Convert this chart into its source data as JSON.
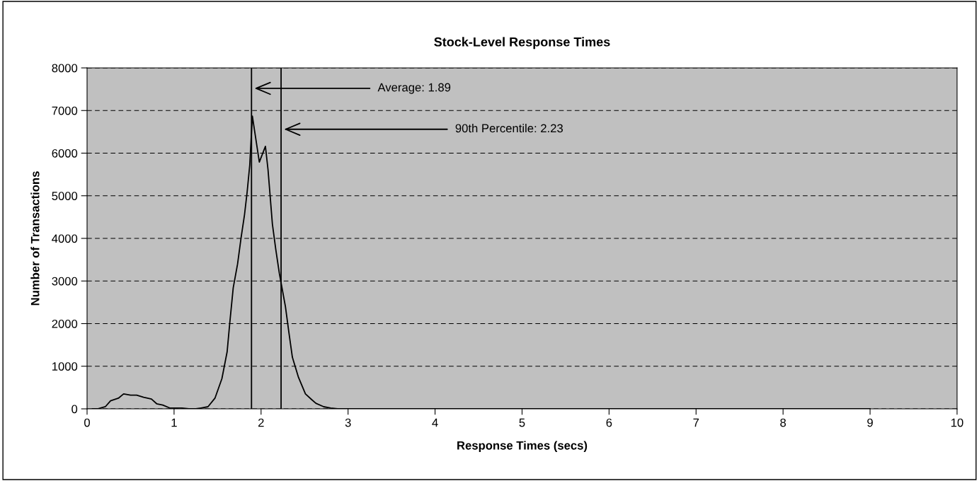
{
  "chart_data": {
    "type": "line",
    "title": "Stock-Level Response Times",
    "xlabel": "Response Times (secs)",
    "ylabel": "Number of Transactions",
    "x": [
      0.06,
      0.12,
      0.21,
      0.27,
      0.36,
      0.42,
      0.5,
      0.57,
      0.65,
      0.74,
      0.8,
      0.87,
      0.95,
      1.03,
      1.09,
      1.17,
      1.25,
      1.31,
      1.39,
      1.47,
      1.55,
      1.61,
      1.64,
      1.68,
      1.73,
      1.77,
      1.81,
      1.84,
      1.87,
      1.9,
      1.98,
      2.05,
      2.08,
      2.13,
      2.17,
      2.21,
      2.28,
      2.32,
      2.36,
      2.43,
      2.51,
      2.58,
      2.63,
      2.72,
      2.8,
      2.88,
      9.0
    ],
    "series": [
      {
        "color": "#000000",
        "values": [
          0,
          0,
          50,
          190,
          250,
          350,
          320,
          320,
          270,
          230,
          120,
          90,
          20,
          20,
          20,
          0,
          0,
          20,
          50,
          250,
          710,
          1340,
          2010,
          2840,
          3400,
          4010,
          4560,
          5090,
          5720,
          6870,
          5790,
          6160,
          5610,
          4340,
          3730,
          3180,
          2400,
          1790,
          1210,
          740,
          350,
          220,
          130,
          50,
          20,
          0,
          0
        ]
      }
    ],
    "xlim": [
      0,
      10
    ],
    "xticks": [
      0,
      1,
      2,
      3,
      4,
      5,
      6,
      7,
      8,
      9,
      10
    ],
    "ylim": [
      0,
      8000
    ],
    "yticks": [
      0,
      1000,
      2000,
      3000,
      4000,
      5000,
      6000,
      7000,
      8000
    ],
    "grid": "y",
    "line_style": "solid",
    "marker": "none",
    "legend": false,
    "ref_lines": [
      {
        "axis": "x",
        "value": 1.89,
        "label": "Average: 1.89",
        "color": "#000000"
      },
      {
        "axis": "x",
        "value": 2.23,
        "label": "90th Percentile: 2.23",
        "color": "#000000"
      }
    ]
  }
}
